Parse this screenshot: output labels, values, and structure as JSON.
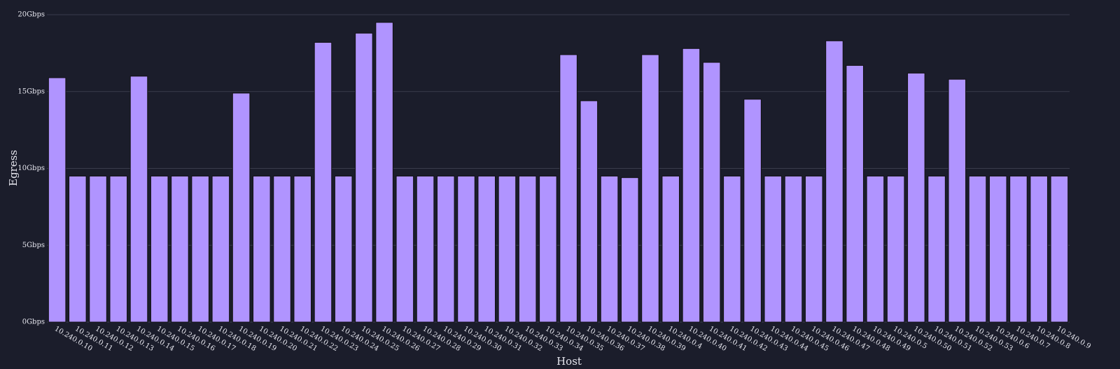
{
  "chart_data": {
    "type": "bar",
    "xlabel": "Host",
    "ylabel": "Egress",
    "categories": [
      "10.240.0.10",
      "10.240.0.11",
      "10.240.0.12",
      "10.240.0.13",
      "10.240.0.14",
      "10.240.0.15",
      "10.240.0.16",
      "10.240.0.17",
      "10.240.0.18",
      "10.240.0.19",
      "10.240.0.20",
      "10.240.0.21",
      "10.240.0.22",
      "10.240.0.23",
      "10.240.0.24",
      "10.240.0.25",
      "10.240.0.26",
      "10.240.0.27",
      "10.240.0.28",
      "10.240.0.29",
      "10.240.0.30",
      "10.240.0.31",
      "10.240.0.32",
      "10.240.0.33",
      "10.240.0.34",
      "10.240.0.35",
      "10.240.0.36",
      "10.240.0.37",
      "10.240.0.38",
      "10.240.0.39",
      "10.240.0.4",
      "10.240.0.40",
      "10.240.0.41",
      "10.240.0.42",
      "10.240.0.43",
      "10.240.0.44",
      "10.240.0.45",
      "10.240.0.46",
      "10.240.0.47",
      "10.240.0.48",
      "10.240.0.49",
      "10.240.0.5",
      "10.240.0.50",
      "10.240.0.51",
      "10.240.0.52",
      "10.240.0.53",
      "10.240.0.6",
      "10.240.0.7",
      "10.240.0.8",
      "10.240.0.9"
    ],
    "values": [
      15.9,
      9.5,
      9.5,
      9.5,
      16.0,
      9.5,
      9.5,
      9.5,
      9.5,
      14.9,
      9.5,
      9.5,
      9.5,
      18.2,
      9.5,
      18.8,
      19.5,
      9.5,
      9.5,
      9.5,
      9.5,
      9.5,
      9.5,
      9.5,
      9.5,
      17.4,
      14.4,
      9.5,
      9.4,
      17.4,
      9.5,
      17.8,
      16.9,
      9.5,
      14.5,
      9.5,
      9.5,
      9.5,
      18.3,
      16.7,
      9.5,
      9.5,
      16.2,
      9.5,
      15.8,
      9.5,
      9.5,
      9.5,
      9.5,
      9.5
    ],
    "color": "#b094ff",
    "ylim": [
      0,
      20
    ],
    "yticks": [
      {
        "value": 0,
        "label": "0Gbps"
      },
      {
        "value": 5,
        "label": "5Gbps"
      },
      {
        "value": 10,
        "label": "10Gbps"
      },
      {
        "value": 15,
        "label": "15Gbps"
      },
      {
        "value": 20,
        "label": "20Gbps"
      }
    ],
    "grid": true
  }
}
